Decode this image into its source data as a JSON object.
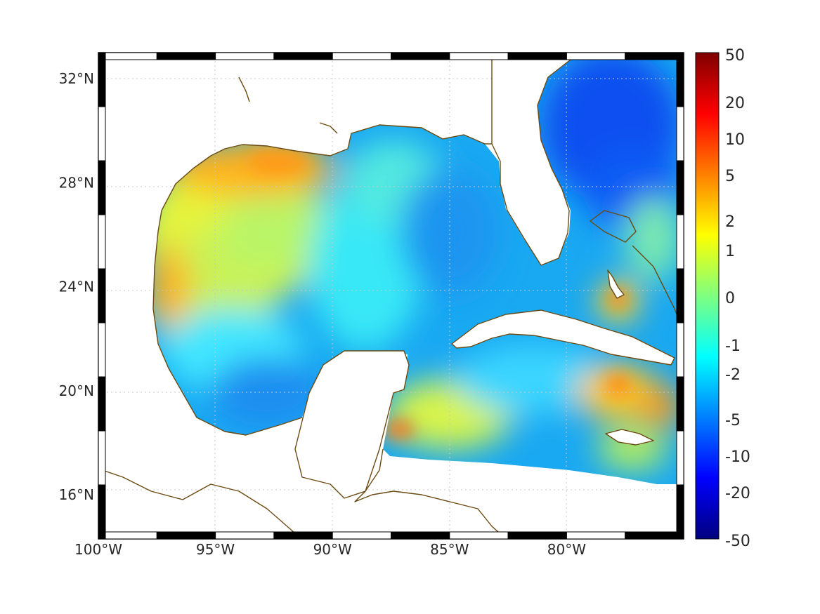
{
  "map": {
    "lon_ticks": [
      {
        "value": -100,
        "label": "100°W"
      },
      {
        "value": -95,
        "label": "95°W"
      },
      {
        "value": -90,
        "label": "90°W"
      },
      {
        "value": -85,
        "label": "85°W"
      },
      {
        "value": -80,
        "label": "80°W"
      }
    ],
    "lat_ticks": [
      {
        "value": 32,
        "label": "32°N"
      },
      {
        "value": 28,
        "label": "28°N"
      },
      {
        "value": 24,
        "label": "24°N"
      },
      {
        "value": 20,
        "label": "20°N"
      },
      {
        "value": 16,
        "label": "16°N"
      }
    ],
    "lon_range": [
      -100,
      -75
    ],
    "lat_range": [
      14.3,
      33
    ]
  },
  "colorbar": {
    "labels": [
      "50",
      "20",
      "10",
      "5",
      "2",
      "1",
      "0",
      "-1",
      "-2",
      "-5",
      "-10",
      "-20",
      "-50"
    ],
    "colormap": "jet",
    "stops": [
      "#00007f",
      "#0000ff",
      "#007fff",
      "#00ffff",
      "#7fff7f",
      "#ffff00",
      "#ff7f00",
      "#ff0000",
      "#7f0000"
    ]
  },
  "colors": {
    "coastline": "#6b4a12",
    "frame": "#000000"
  }
}
